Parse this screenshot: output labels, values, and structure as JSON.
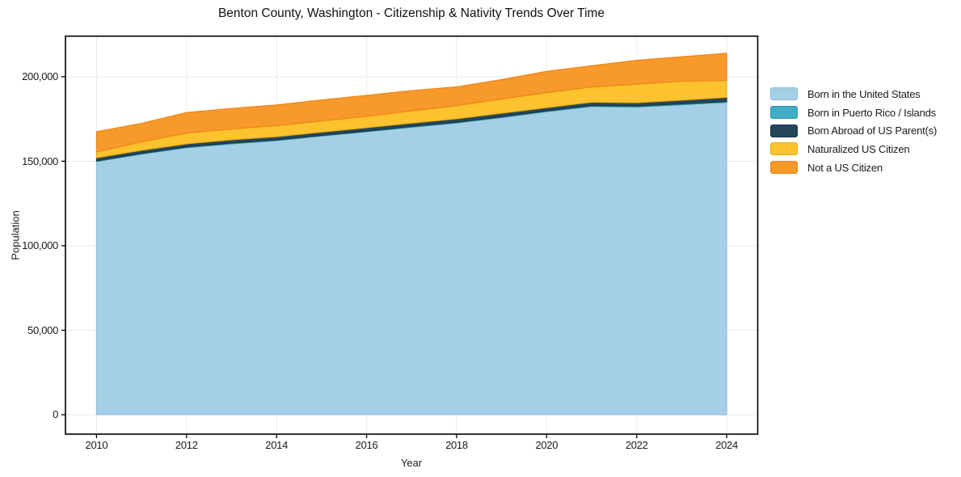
{
  "chart_data": {
    "type": "area",
    "stacked": true,
    "title": "Benton County, Washington - Citizenship & Nativity Trends Over Time",
    "xlabel": "Year",
    "ylabel": "Population",
    "x": [
      2010,
      2011,
      2012,
      2013,
      2014,
      2015,
      2016,
      2017,
      2018,
      2019,
      2020,
      2021,
      2022,
      2023,
      2024
    ],
    "series": [
      {
        "name": "Born in the United States",
        "color": "#a4cfe7",
        "edge": "#8bbedd",
        "values": [
          149800,
          154200,
          158000,
          160300,
          162200,
          164900,
          167400,
          170100,
          172600,
          175800,
          179300,
          182400,
          182100,
          183400,
          184800
        ]
      },
      {
        "name": "Born in Puerto Rico / Islands",
        "color": "#41aec6",
        "edge": "#2e93aa",
        "values": [
          400,
          400,
          400,
          400,
          400,
          400,
          400,
          450,
          450,
          450,
          450,
          500,
          500,
          500,
          550
        ]
      },
      {
        "name": "Born Abroad of US Parent(s)",
        "color": "#24465a",
        "edge": "#1a3548",
        "values": [
          1800,
          1850,
          1900,
          1950,
          1900,
          1900,
          2000,
          2000,
          2000,
          2100,
          1900,
          2000,
          2000,
          2200,
          2400
        ]
      },
      {
        "name": "Naturalized US Citizen",
        "color": "#fcc32f",
        "edge": "#eaa714",
        "values": [
          3400,
          5000,
          6300,
          6400,
          6500,
          6600,
          6700,
          7200,
          7800,
          8500,
          8900,
          9000,
          11000,
          11200,
          10000
        ]
      },
      {
        "name": "Not a US Citizen",
        "color": "#f8992b",
        "edge": "#ef8212",
        "values": [
          12100,
          11000,
          12200,
          12250,
          12300,
          12500,
          12500,
          12050,
          11150,
          11450,
          12650,
          12600,
          14100,
          14500,
          16150
        ]
      }
    ],
    "x_ticks": [
      {
        "v": 2010,
        "label": "2010"
      },
      {
        "v": 2012,
        "label": "2012"
      },
      {
        "v": 2014,
        "label": "2014"
      },
      {
        "v": 2016,
        "label": "2016"
      },
      {
        "v": 2018,
        "label": "2018"
      },
      {
        "v": 2020,
        "label": "2020"
      },
      {
        "v": 2022,
        "label": "2022"
      },
      {
        "v": 2024,
        "label": "2024"
      }
    ],
    "y_ticks": [
      {
        "v": 0,
        "label": "0"
      },
      {
        "v": 50000,
        "label": "50,000"
      },
      {
        "v": 100000,
        "label": "100,000"
      },
      {
        "v": 150000,
        "label": "150,000"
      },
      {
        "v": 200000,
        "label": "200,000"
      }
    ],
    "xlim": [
      2009.31,
      2024.69
    ],
    "ylim": [
      -11500,
      224000
    ],
    "grid": true,
    "grid_color": "#e9e9e9",
    "border_color": "#000000",
    "legend_position": "right"
  }
}
